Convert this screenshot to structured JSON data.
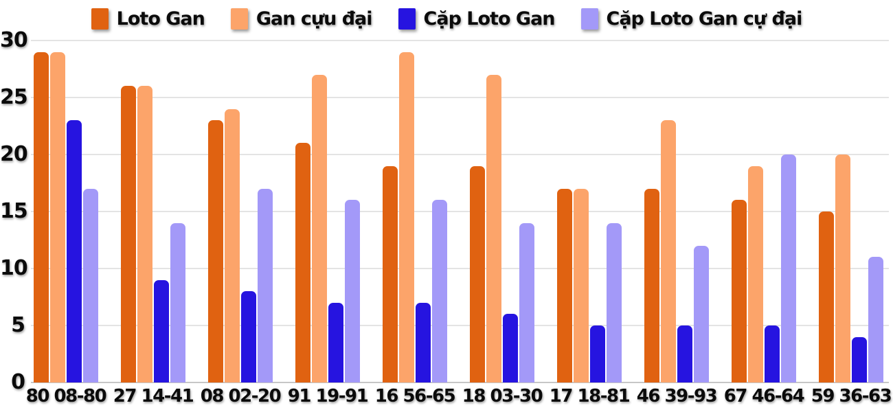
{
  "chart_data": {
    "type": "bar",
    "categories": [
      "80 08-80",
      "27 14-41",
      "08 02-20",
      "91 19-91",
      "16 56-65",
      "18 03-30",
      "17 18-81",
      "46 39-93",
      "67 46-64",
      "59 36-63"
    ],
    "series": [
      {
        "name": "Loto Gan",
        "color": "#E06211",
        "values": [
          29,
          26,
          23,
          21,
          19,
          19,
          17,
          17,
          16,
          15
        ]
      },
      {
        "name": "Gan cựu đại",
        "color": "#FCA46A",
        "values": [
          29,
          26,
          24,
          27,
          29,
          27,
          17,
          23,
          19,
          20
        ]
      },
      {
        "name": "Cặp Loto Gan",
        "color": "#2614E0",
        "values": [
          23,
          9,
          8,
          7,
          7,
          6,
          5,
          5,
          5,
          4
        ]
      },
      {
        "name": "Cặp Loto Gan cự đại",
        "color": "#A399F8",
        "values": [
          17,
          14,
          17,
          16,
          16,
          14,
          14,
          12,
          20,
          11
        ]
      }
    ],
    "ylim": [
      0,
      30
    ],
    "yticks": [
      0,
      5,
      10,
      15,
      20,
      25,
      30
    ],
    "grid": true,
    "legend_position": "top"
  },
  "colors": {
    "background": "#FFFFFF",
    "gridline": "#E4E4E4",
    "axis_baseline": "#C6C6C6",
    "text": "#0B0B0B"
  }
}
